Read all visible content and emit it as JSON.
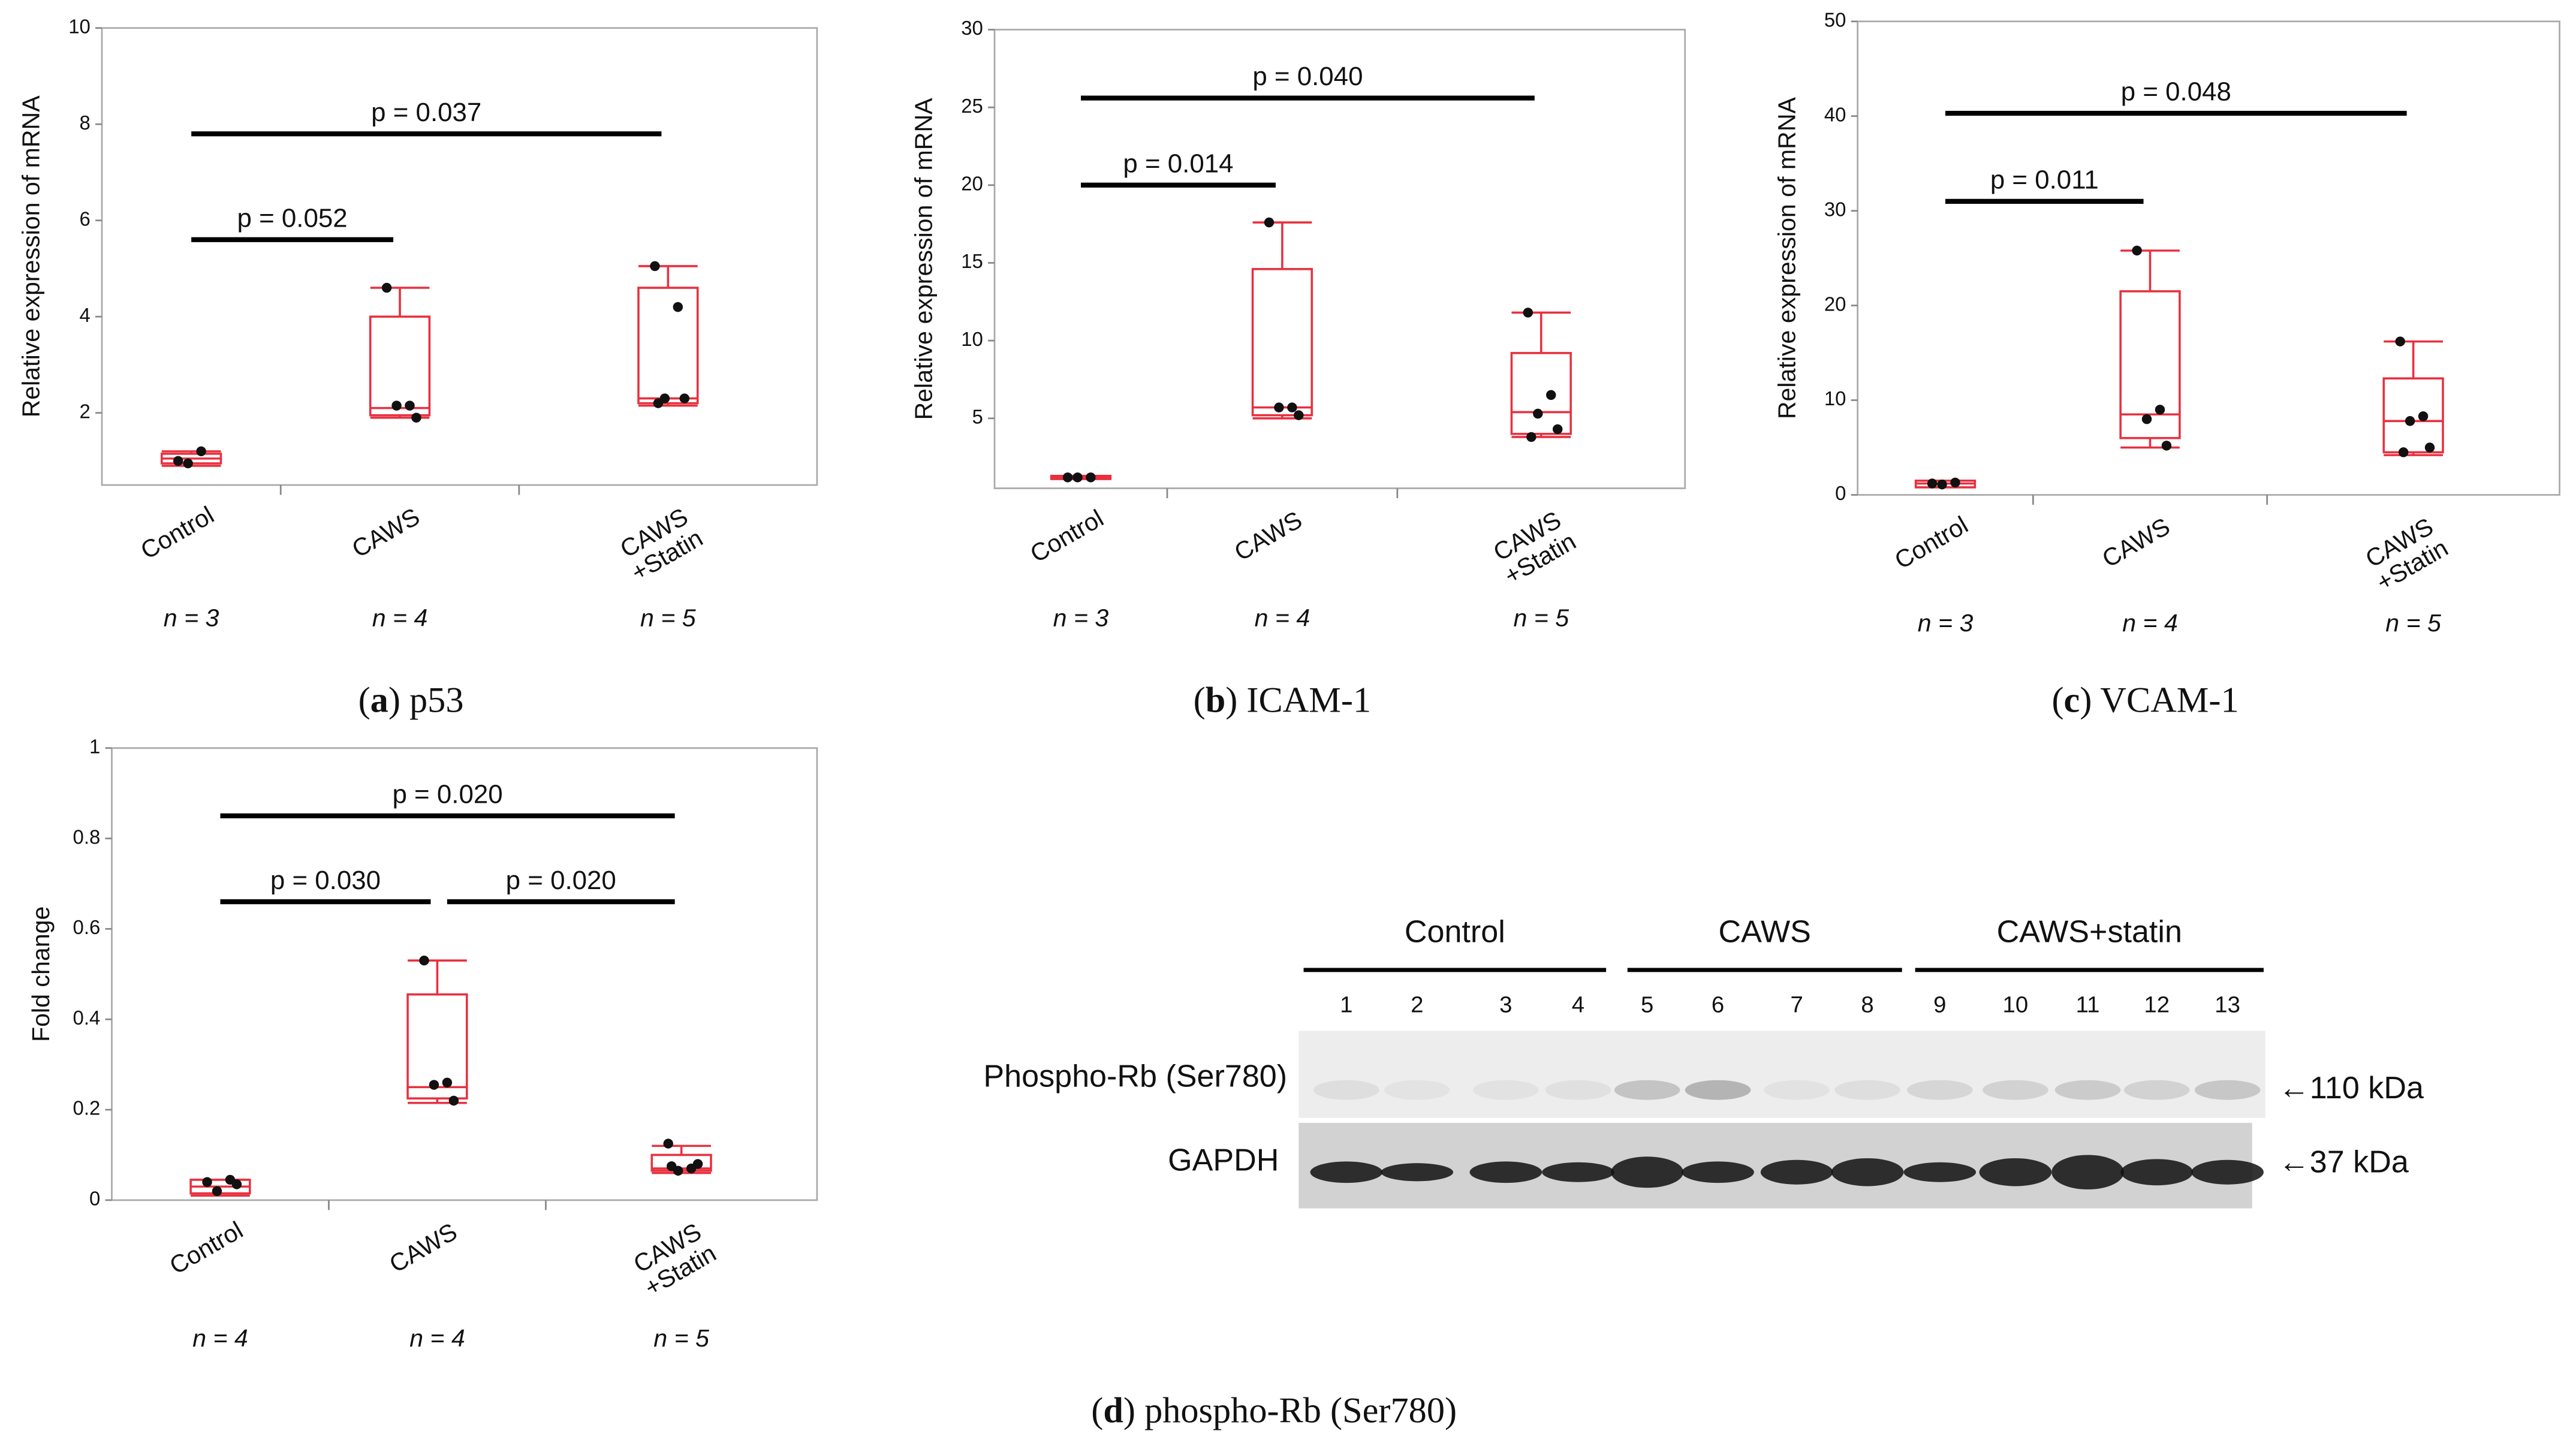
{
  "chart_data": [
    {
      "type": "box",
      "ylabel": "Relative expression of mRNA",
      "ylim": [
        0.5,
        10
      ],
      "yticks": [
        2,
        4,
        6,
        8,
        10
      ],
      "categories": [
        "Control",
        "CAWS",
        "CAWS\n+Statin"
      ],
      "n": [
        3,
        4,
        5
      ],
      "n_labels": [
        "n = 3",
        "n = 4",
        "n = 5"
      ],
      "color": "#e8303f",
      "groups": [
        {
          "points": [
            1.0,
            1.2,
            0.95
          ],
          "min": 0.9,
          "q1": 0.95,
          "median": 1.05,
          "q3": 1.15,
          "max": 1.2
        },
        {
          "points": [
            4.6,
            2.15,
            2.15,
            1.9
          ],
          "min": 1.9,
          "q1": 1.95,
          "median": 2.1,
          "q3": 4.0,
          "max": 4.6
        },
        {
          "points": [
            5.05,
            4.2,
            2.3,
            2.3,
            2.2
          ],
          "min": 2.15,
          "q1": 2.2,
          "median": 2.3,
          "q3": 4.6,
          "max": 5.05
        }
      ],
      "annotations": [
        {
          "label": "p = 0.052",
          "from": 0,
          "to": 1,
          "y": 5.6
        },
        {
          "label": "p = 0.037",
          "from": 0,
          "to": 2,
          "y": 7.8
        }
      ],
      "caption": [
        "(",
        "a",
        ") p53"
      ]
    },
    {
      "type": "box",
      "ylabel": "Relative expression of mRNA",
      "ylim": [
        0.5,
        30
      ],
      "yticks": [
        5,
        10,
        15,
        20,
        25,
        30
      ],
      "categories": [
        "Control",
        "CAWS",
        "CAWS\n+Statin"
      ],
      "n": [
        3,
        4,
        5
      ],
      "n_labels": [
        "n = 3",
        "n = 4",
        "n = 5"
      ],
      "color": "#e8303f",
      "groups": [
        {
          "points": [
            1.2,
            1.2,
            1.2
          ],
          "min": 1.1,
          "q1": 1.1,
          "median": 1.2,
          "q3": 1.3,
          "max": 1.3
        },
        {
          "points": [
            17.6,
            5.7,
            5.7,
            5.2
          ],
          "min": 5.0,
          "q1": 5.2,
          "median": 5.7,
          "q3": 14.6,
          "max": 17.6
        },
        {
          "points": [
            11.8,
            6.5,
            5.3,
            4.3,
            3.8
          ],
          "min": 3.8,
          "q1": 4.0,
          "median": 5.4,
          "q3": 9.2,
          "max": 11.8
        }
      ],
      "annotations": [
        {
          "label": "p = 0.014",
          "from": 0,
          "to": 1,
          "y": 20
        },
        {
          "label": "p = 0.040",
          "from": 0,
          "to": 2,
          "y": 25.6
        }
      ],
      "caption": [
        "(",
        "b",
        ") ICAM-1"
      ]
    },
    {
      "type": "box",
      "ylabel": "Relative expression of mRNA",
      "ylim": [
        0,
        50
      ],
      "yticks": [
        0,
        10,
        20,
        30,
        40,
        50
      ],
      "categories": [
        "Control",
        "CAWS",
        "CAWS\n+Statin"
      ],
      "n": [
        3,
        4,
        5
      ],
      "n_labels": [
        "n = 3",
        "n = 4",
        "n = 5"
      ],
      "color": "#e8303f",
      "groups": [
        {
          "points": [
            1.2,
            1.3,
            1.1
          ],
          "min": 0.8,
          "q1": 0.8,
          "median": 1.2,
          "q3": 1.5,
          "max": 1.5
        },
        {
          "points": [
            25.8,
            9.0,
            8.0,
            5.2
          ],
          "min": 5.0,
          "q1": 6.0,
          "median": 8.5,
          "q3": 21.5,
          "max": 25.8
        },
        {
          "points": [
            16.2,
            8.3,
            7.8,
            5.0,
            4.5
          ],
          "min": 4.2,
          "q1": 4.5,
          "median": 7.8,
          "q3": 12.3,
          "max": 16.2
        }
      ],
      "annotations": [
        {
          "label": "p = 0.011",
          "from": 0,
          "to": 1,
          "y": 31
        },
        {
          "label": "p = 0.048",
          "from": 0,
          "to": 2,
          "y": 40.3
        }
      ],
      "caption": [
        "(",
        "c",
        ") VCAM-1"
      ]
    },
    {
      "type": "box",
      "ylabel": "Fold change",
      "ylim": [
        0,
        1
      ],
      "yticks": [
        0,
        0.2,
        0.4,
        0.6,
        0.8,
        1
      ],
      "categories": [
        "Control",
        "CAWS",
        "CAWS\n+Statin"
      ],
      "n": [
        4,
        4,
        5
      ],
      "n_labels": [
        "n = 4",
        "n = 4",
        "n = 5"
      ],
      "color": "#e8303f",
      "groups": [
        {
          "points": [
            0.04,
            0.045,
            0.02,
            0.035
          ],
          "min": 0.01,
          "q1": 0.015,
          "median": 0.03,
          "q3": 0.045,
          "max": 0.045
        },
        {
          "points": [
            0.53,
            0.26,
            0.255,
            0.22
          ],
          "min": 0.215,
          "q1": 0.225,
          "median": 0.25,
          "q3": 0.455,
          "max": 0.53
        },
        {
          "points": [
            0.125,
            0.07,
            0.065,
            0.08,
            0.075
          ],
          "min": 0.06,
          "q1": 0.065,
          "median": 0.07,
          "q3": 0.1,
          "max": 0.12
        }
      ],
      "annotations": [
        {
          "label": "p = 0.030",
          "from": 0,
          "to": 1,
          "y": 0.66
        },
        {
          "label": "p = 0.020",
          "from": 1,
          "to": 2,
          "y": 0.66
        },
        {
          "label": "p = 0.020",
          "from": 0,
          "to": 2,
          "y": 0.85
        }
      ],
      "caption": [
        "(",
        "d",
        ") phospho-Rb (Ser780)"
      ]
    }
  ],
  "blot": {
    "groups": [
      "Control",
      "CAWS",
      "CAWS+statin"
    ],
    "lanes": [
      1,
      2,
      3,
      4,
      5,
      6,
      7,
      8,
      9,
      10,
      11,
      12,
      13
    ],
    "rows": [
      "Phospho-Rb (Ser780)",
      "GAPDH"
    ],
    "sizes": [
      "←110 kDa",
      "←37 kDa"
    ]
  }
}
